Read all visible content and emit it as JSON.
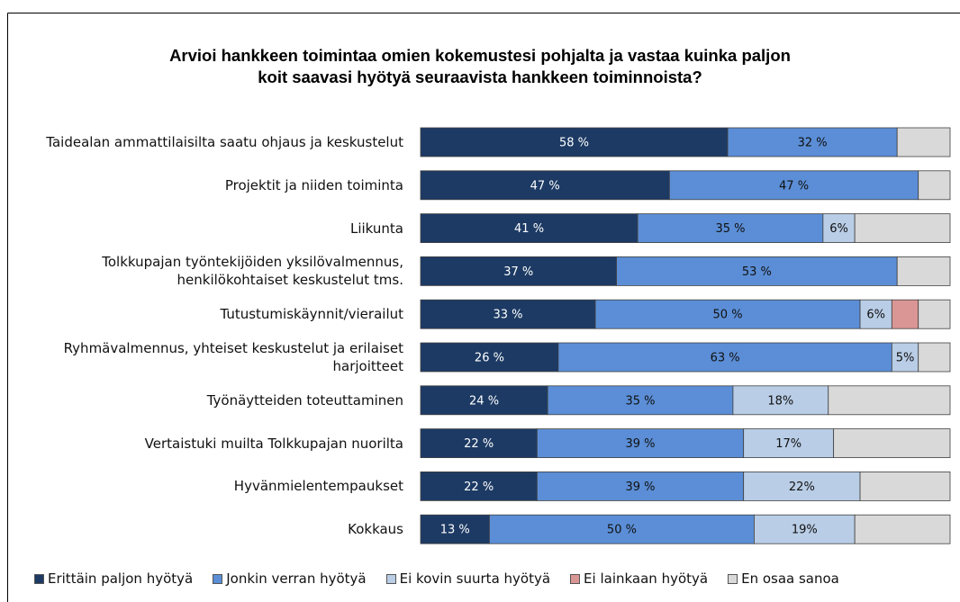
{
  "chart_data": {
    "type": "stacked_bar_horizontal",
    "title": [
      "Arvioi hankkeen toimintaa omien kokemustesi pohjalta ja vastaa kuinka paljon",
      "koit saavasi hyötyä seuraavista hankkeen toiminnoista?"
    ],
    "categories": [
      "Taidealan ammattilaisilta saatu ohjaus ja keskustelut",
      "Projektit ja niiden toiminta",
      "Liikunta",
      "Tolkkupajan työntekijöiden yksilövalmennus, henkilökohtaiset keskustelut tms.",
      "Tutustumiskäynnit/vierailut",
      "Ryhmävalmennus, yhteiset keskustelut ja erilaiset harjoitteet",
      "Työnäytteiden toteuttaminen",
      "Vertaistuki muilta Tolkkupajan nuorilta",
      "Hyvänmielentempaukset",
      "Kokkaus"
    ],
    "xlim": [
      0,
      100
    ],
    "series": [
      {
        "name": "Erittäin paljon hyötyä",
        "color": "#1c3a64",
        "values": [
          58,
          47,
          41,
          37,
          33,
          26,
          24,
          22,
          22,
          13
        ],
        "value_labels": [
          "58 %",
          "47 %",
          "41 %",
          "37 %",
          "33 %",
          "26 %",
          "24 %",
          "22 %",
          "22 %",
          "13 %"
        ]
      },
      {
        "name": "Jonkin verran hyötyä",
        "color": "#5b8ed6",
        "values": [
          32,
          47,
          35,
          53,
          50,
          63,
          35,
          39,
          39,
          50
        ],
        "value_labels": [
          "32 %",
          "47 %",
          "35 %",
          "53 %",
          "50 %",
          "63 %",
          "35 %",
          "39 %",
          "39 %",
          "50 %"
        ]
      },
      {
        "name": "Ei kovin suurta hyötyä",
        "color": "#b9cde6",
        "values": [
          0,
          0,
          6,
          0,
          6,
          5,
          18,
          17,
          22,
          19
        ],
        "value_labels": [
          null,
          null,
          "6%",
          null,
          "6%",
          "5%",
          "18%",
          "17%",
          "22%",
          "19%"
        ]
      },
      {
        "name": "Ei lainkaan hyötyä",
        "color": "#d99694",
        "values": [
          0,
          0,
          0,
          0,
          5,
          0,
          0,
          0,
          0,
          0
        ]
      },
      {
        "name": "En osaa sanoa",
        "color": "#d9d9d9",
        "values": [
          10,
          6,
          18,
          10,
          6,
          6,
          23,
          22,
          17,
          18
        ]
      }
    ]
  }
}
